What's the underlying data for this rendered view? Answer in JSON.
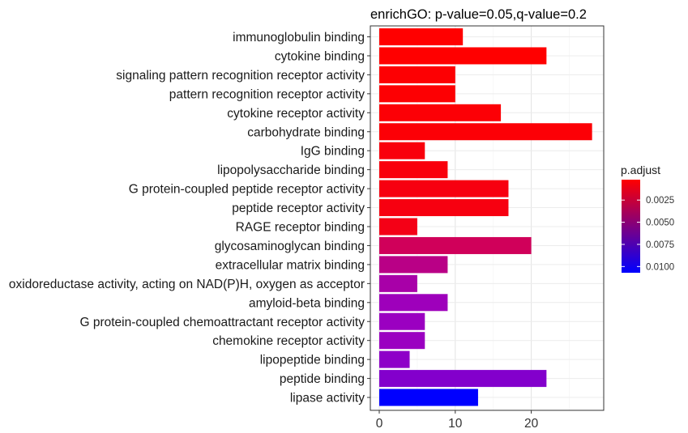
{
  "chart_data": {
    "type": "bar",
    "orientation": "horizontal",
    "title": "enrichGO: p-value=0.05,q-value=0.2",
    "xlabel": "",
    "ylabel": "",
    "xlim": [
      0,
      29
    ],
    "xticks": [
      0,
      10,
      20
    ],
    "grid": true,
    "categories": [
      "immunoglobulin binding",
      "cytokine binding",
      "signaling pattern recognition receptor activity",
      "pattern recognition receptor activity",
      "cytokine receptor activity",
      "carbohydrate binding",
      "IgG binding",
      "lipopolysaccharide binding",
      "G protein-coupled peptide receptor activity",
      "peptide receptor activity",
      "RAGE receptor binding",
      "glycosaminoglycan binding",
      "extracellular matrix binding",
      "oxidoreductase activity, acting on NAD(P)H, oxygen as acceptor",
      "amyloid-beta binding",
      "G protein-coupled chemoattractant receptor activity",
      "chemokine receptor activity",
      "lipopeptide binding",
      "peptide binding",
      "lipase activity"
    ],
    "values": [
      11,
      22,
      10,
      10,
      16,
      28,
      6,
      9,
      17,
      17,
      5,
      20,
      9,
      5,
      9,
      6,
      6,
      4,
      22,
      13
    ],
    "p_adjust": [
      0.0002,
      0.0002,
      0.0003,
      0.0003,
      0.0004,
      0.0004,
      0.0006,
      0.0006,
      0.0007,
      0.0007,
      0.0009,
      0.0031,
      0.0045,
      0.0056,
      0.0062,
      0.0064,
      0.0064,
      0.0068,
      0.0071,
      0.0107
    ],
    "color_scale": {
      "title": "p.adjust",
      "min": 0.0002,
      "max": 0.0107,
      "low_color": "#FF0000",
      "high_color": "#0000FF",
      "ticks": [
        0.0025,
        0.005,
        0.0075,
        0.01
      ],
      "tick_labels": [
        "0.0025",
        "0.0050",
        "0.0075",
        "0.0100"
      ]
    },
    "legend_position": "right"
  }
}
